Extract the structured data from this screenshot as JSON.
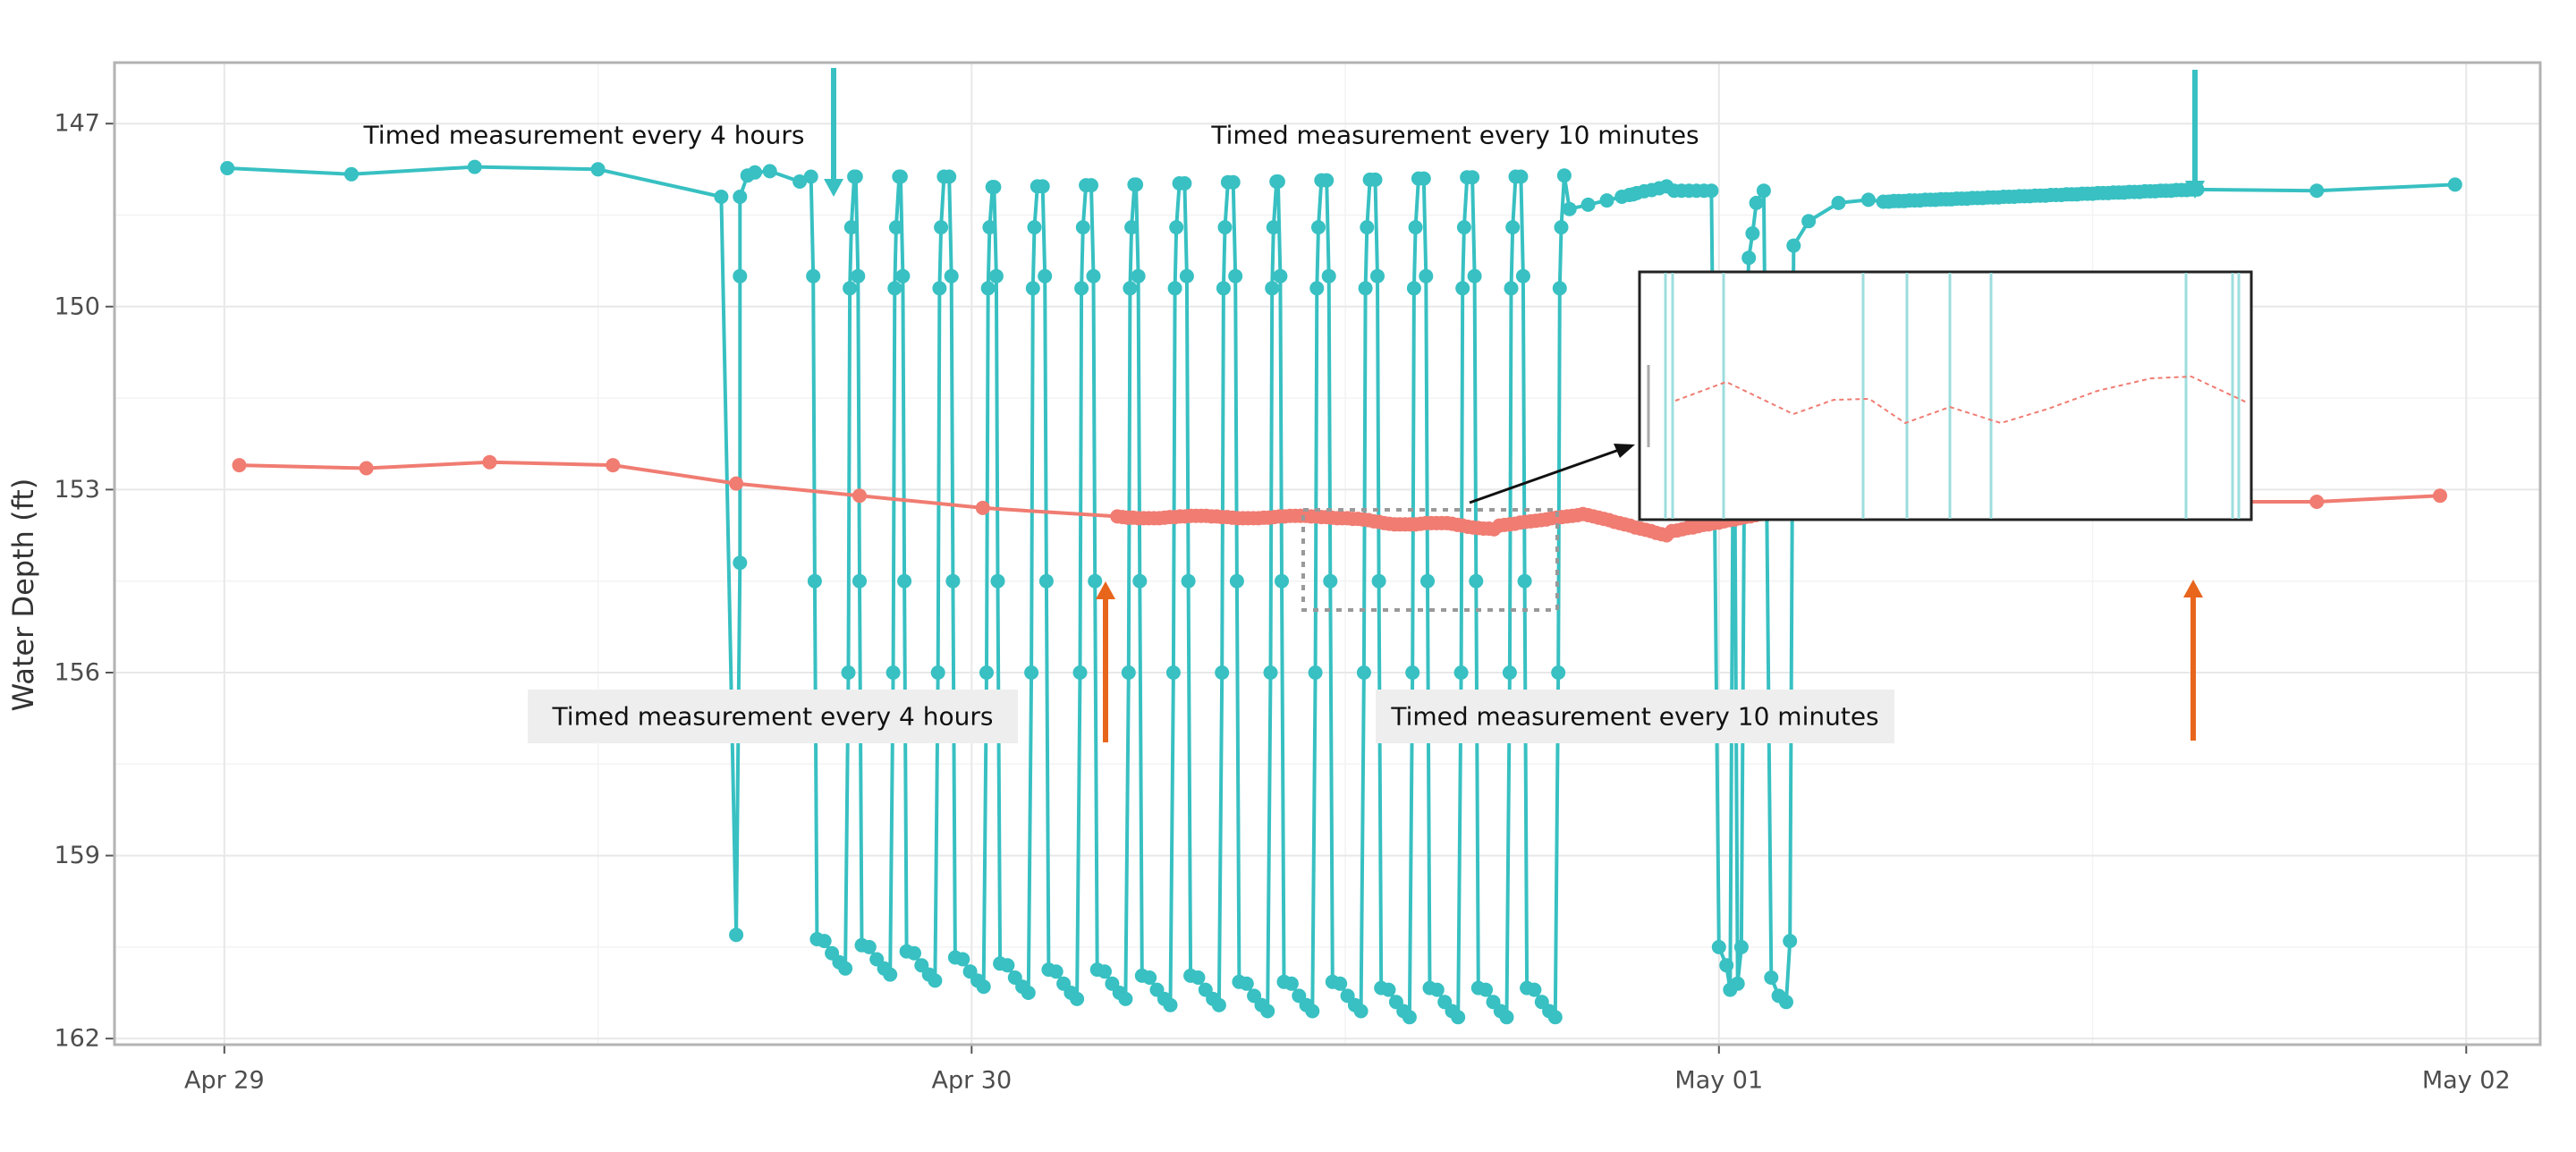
{
  "chart_data": {
    "type": "line",
    "ylabel": "Water Depth (ft)",
    "xlabel": "",
    "y_reversed": true,
    "ylim": [
      146,
      162.1
    ],
    "y_ticks": [
      147,
      150,
      153,
      156,
      159,
      162
    ],
    "y_tick_labels": [
      "147",
      "150",
      "153",
      "156",
      "159",
      "162"
    ],
    "x_domain_days": [
      -0.147,
      3.099
    ],
    "x_ticks_days": [
      0,
      1,
      2,
      3
    ],
    "x_tick_labels": [
      "Apr 29",
      "Apr 30",
      "May 01",
      "May 02"
    ],
    "grid": true,
    "colors": {
      "teal": "#38C0C2",
      "salmon": "#F07C72",
      "arrow_orange": "#E8651C",
      "inset_border": "#222222",
      "dotted_box": "#999999"
    },
    "series": [
      {
        "color": "#38C0C2",
        "x": [],
        "y": []
      },
      {
        "color": "#F07C72",
        "x": [],
        "y": []
      }
    ],
    "annotations": {
      "teal_four_hour": "Timed measurement every 4 hours",
      "teal_ten_minute": "Timed measurement every 10 minutes",
      "salmon_four_hour": "Timed measurement every 4 hours",
      "salmon_ten_minute": "Timed measurement every 10 minutes"
    }
  }
}
